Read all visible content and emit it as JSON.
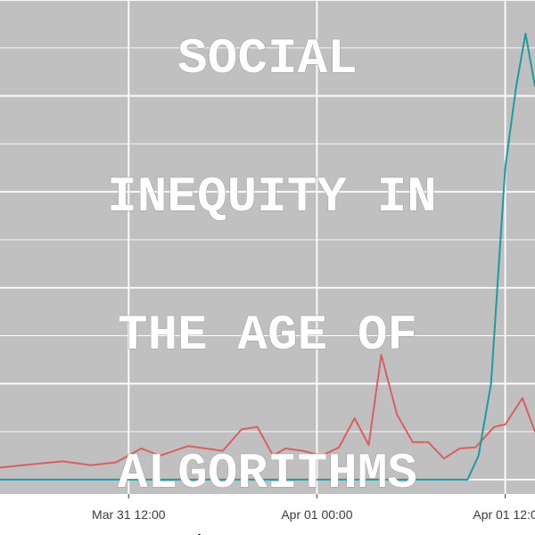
{
  "overlay": {
    "lines": [
      "SOCIAL",
      "INEQUITY IN",
      "THE AGE OF",
      "ALGORITHMS"
    ]
  },
  "chart_data": {
    "type": "line",
    "xlabel": "time",
    "ylabel": "",
    "x_ticks": [
      {
        "value": -12,
        "label": "Mar 31 12:00"
      },
      {
        "value": 0,
        "label": "Apr 01 00:00"
      },
      {
        "value": 12,
        "label": "Apr 01 12:0"
      }
    ],
    "xlim": [
      -20.2,
      13.9
    ],
    "ylim": [
      -3,
      100
    ],
    "grid": true,
    "colors": {
      "panel": "#c0c0c0",
      "grid": "#ffffff",
      "red_series": "#d9605e",
      "teal_series": "#1f9aa0",
      "background": "#ffffff"
    },
    "series": [
      {
        "color": "#d9605e",
        "points": [
          [
            -20.2,
            2.5
          ],
          [
            -18.2,
            3.2
          ],
          [
            -16.2,
            3.8
          ],
          [
            -14.4,
            3.0
          ],
          [
            -12.8,
            3.6
          ],
          [
            -11.2,
            6.5
          ],
          [
            -10.0,
            5.0
          ],
          [
            -8.2,
            7.0
          ],
          [
            -6.0,
            6.0
          ],
          [
            -4.8,
            10.5
          ],
          [
            -3.8,
            11.0
          ],
          [
            -2.8,
            5.0
          ],
          [
            -2.0,
            6.5
          ],
          [
            -0.9,
            6.0
          ],
          [
            0.3,
            5.0
          ],
          [
            1.4,
            6.7
          ],
          [
            2.4,
            12.8
          ],
          [
            3.3,
            7.2
          ],
          [
            4.1,
            26.0
          ],
          [
            5.1,
            13.6
          ],
          [
            6.1,
            7.8
          ],
          [
            7.1,
            7.8
          ],
          [
            8.1,
            4.4
          ],
          [
            9.1,
            6.5
          ],
          [
            10.1,
            6.7
          ],
          [
            11.3,
            11.0
          ],
          [
            12.0,
            11.5
          ],
          [
            13.1,
            17.0
          ],
          [
            13.9,
            10.0
          ]
        ]
      },
      {
        "color": "#1f9aa0",
        "points": [
          [
            -20.2,
            0
          ],
          [
            6.8,
            0
          ],
          [
            9.6,
            0
          ],
          [
            10.3,
            5.0
          ],
          [
            11.1,
            20.0
          ],
          [
            12.0,
            65.0
          ],
          [
            12.7,
            82.0
          ],
          [
            13.3,
            93.0
          ],
          [
            13.9,
            82.0
          ]
        ]
      }
    ]
  }
}
